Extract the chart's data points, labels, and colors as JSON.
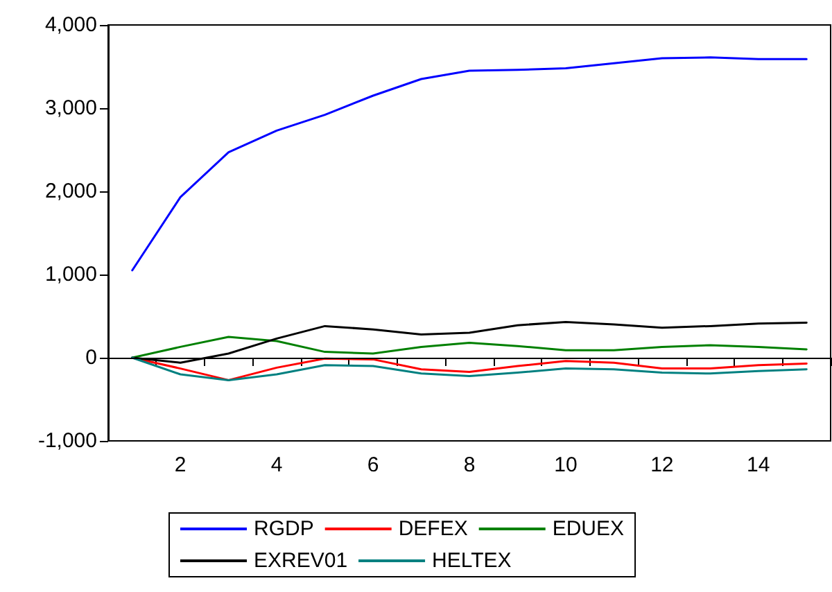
{
  "chart_data": {
    "type": "line",
    "categories": [
      null,
      "2",
      null,
      "4",
      null,
      "6",
      null,
      "8",
      null,
      "10",
      null,
      "12",
      null,
      "14",
      null
    ],
    "series": [
      {
        "name": "RGDP",
        "color": "#0000ff",
        "values": [
          1050,
          1930,
          2470,
          2730,
          2920,
          3150,
          3350,
          3450,
          3460,
          3480,
          3540,
          3600,
          3610,
          3590,
          3590
        ]
      },
      {
        "name": "DEFEX",
        "color": "#ff0000",
        "values": [
          0,
          -130,
          -270,
          -120,
          -10,
          -20,
          -140,
          -170,
          -100,
          -40,
          -60,
          -130,
          -130,
          -90,
          -70
        ]
      },
      {
        "name": "EDUEX",
        "color": "#008000",
        "values": [
          0,
          130,
          250,
          200,
          70,
          50,
          130,
          180,
          140,
          90,
          90,
          130,
          150,
          130,
          100
        ]
      },
      {
        "name": "EXREV01",
        "color": "#000000",
        "values": [
          0,
          -60,
          50,
          230,
          380,
          340,
          280,
          300,
          390,
          430,
          400,
          360,
          380,
          410,
          420
        ]
      },
      {
        "name": "HELTEX",
        "color": "#008080",
        "values": [
          0,
          -200,
          -270,
          -200,
          -90,
          -100,
          -190,
          -220,
          -180,
          -130,
          -140,
          -180,
          -190,
          -160,
          -140
        ]
      }
    ],
    "ylim": [
      -1000,
      4000
    ],
    "yticks": [
      {
        "value": -1000,
        "label": "-1,000"
      },
      0,
      {
        "value": 1000,
        "label": "1,000"
      },
      {
        "value": 2000,
        "label": "2,000"
      },
      {
        "value": 3000,
        "label": "3,000"
      },
      {
        "value": 4000,
        "label": "4,000"
      }
    ],
    "ref_lines": [
      {
        "axis": "y",
        "value": 0,
        "color": "#000000"
      }
    ],
    "grid": false,
    "legend": "bottom",
    "marker": "none",
    "line_style": "solid"
  }
}
